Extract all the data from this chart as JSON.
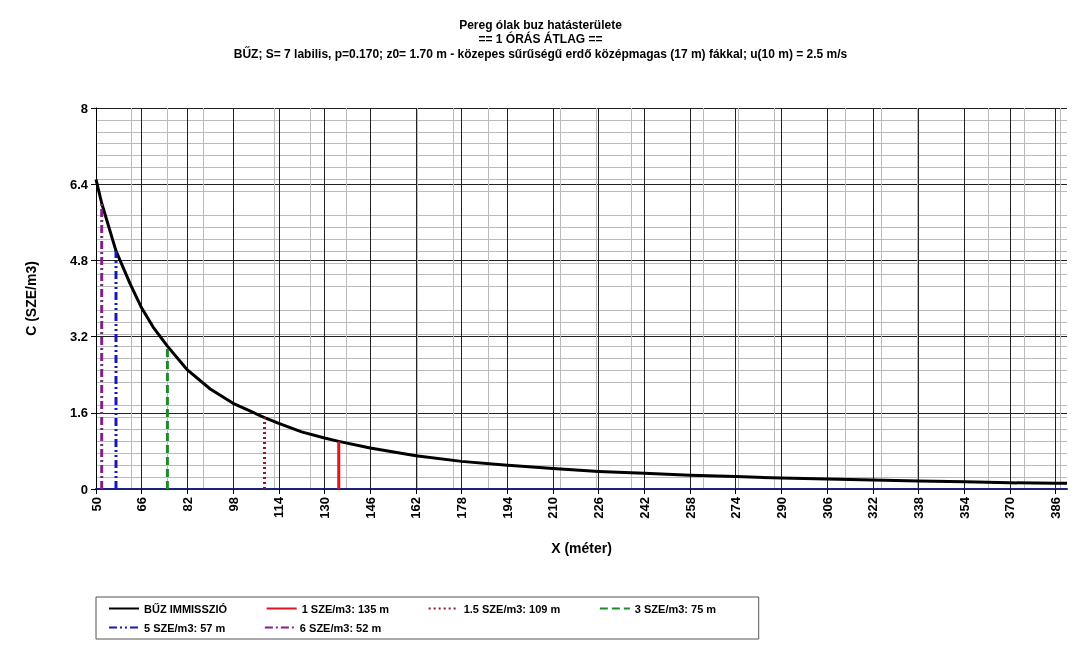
{
  "chart_data": {
    "type": "line",
    "title": "Pereg ólak buz hatásterülete",
    "subtitle": "== 1 ÓRÁS ÁTLAG ==\nBŰZ; S= 7 labilis, p=0.170; z0= 1.70 m - közepes sűrűségű erdő középmagas (17 m) fákkal; u(10 m) = 2.5 m/s",
    "xlabel": "X (méter)",
    "ylabel": "C (SZE/m3)",
    "xlim": [
      50,
      390
    ],
    "xticks": [
      50,
      66,
      82,
      98,
      114,
      130,
      146,
      162,
      178,
      194,
      210,
      226,
      242,
      258,
      274,
      290,
      306,
      322,
      338,
      354,
      370,
      386
    ],
    "ylim": [
      0,
      8
    ],
    "yticks": [
      0,
      1.6,
      3.2,
      4.8,
      6.4,
      8
    ],
    "grid": true,
    "legend": "bottom",
    "marker": "none",
    "series": [
      {
        "name": "BŰZ IMMISSZIÓ",
        "color": "#000000",
        "line_style": "solid",
        "x": [
          50,
          52,
          57,
          62,
          66,
          70,
          75,
          82,
          90,
          98,
          109,
          114,
          122,
          130,
          135,
          146,
          162,
          178,
          194,
          210,
          226,
          242,
          258,
          274,
          290,
          306,
          322,
          338,
          354,
          370,
          386,
          390
        ],
        "values": [
          6.5,
          6.0,
          5.0,
          4.3,
          3.8,
          3.4,
          3.0,
          2.5,
          2.1,
          1.8,
          1.5,
          1.38,
          1.2,
          1.07,
          1.0,
          0.86,
          0.7,
          0.58,
          0.5,
          0.43,
          0.37,
          0.33,
          0.29,
          0.26,
          0.23,
          0.21,
          0.19,
          0.17,
          0.15,
          0.13,
          0.12,
          0.12
        ]
      },
      {
        "name": "1 SZE/m3: 135 m",
        "color": "#e0141e",
        "line_style": "solid",
        "x": [
          135,
          135
        ],
        "values": [
          0,
          1
        ]
      },
      {
        "name": "1.5 SZE/m3: 109 m",
        "color": "#8b1a2a",
        "line_style": "dotted",
        "x": [
          109,
          109
        ],
        "values": [
          0,
          1.5
        ]
      },
      {
        "name": "3 SZE/m3: 75 m",
        "color": "#1f8a2a",
        "line_style": "dashed",
        "x": [
          75,
          75
        ],
        "values": [
          0,
          3
        ]
      },
      {
        "name": "5 SZE/m3: 57 m",
        "color": "#1818c0",
        "line_style": "dashdotdot",
        "x": [
          57,
          57
        ],
        "values": [
          0,
          5
        ]
      },
      {
        "name": "6 SZE/m3: 52 m",
        "color": "#80208a",
        "line_style": "dashdot",
        "x": [
          52,
          52
        ],
        "values": [
          0,
          6
        ]
      }
    ]
  }
}
